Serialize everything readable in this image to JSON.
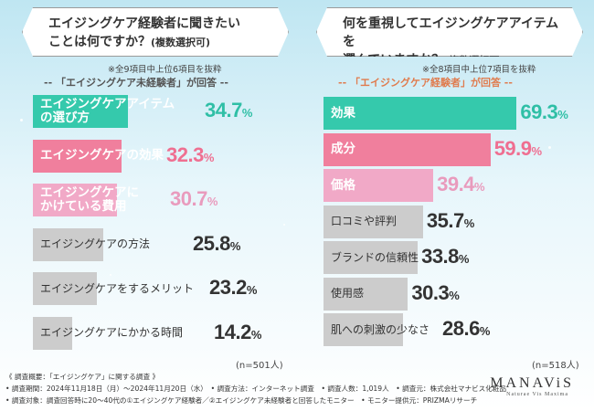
{
  "left": {
    "question_main": "エイジングケア経験者に聞きたい",
    "question_line2": "ことは何ですか？",
    "question_sub": "(複数選択可)",
    "note": "※全9項目中上位6項目を抜粋",
    "respondent": "-- 「エイジングケア未経験者」が回答 --",
    "n_label": "(n=501人)"
  },
  "right": {
    "question_main": "何を重視してエイジングケアアイテムを",
    "question_line2": "選んでいますか？",
    "question_sub": "(複数選択可)",
    "note": "※全8項目中上位7項目を抜粋",
    "respondent": "-- 「エイジングケア経験者」が回答 --",
    "n_label": "(n=518人)"
  },
  "chart_data": [
    {
      "type": "bar",
      "orientation": "horizontal",
      "unit": "%",
      "categories": [
        "エイジングケアアイテムの選び方",
        "エイジングケアの効果",
        "エイジングケアにかけている費用",
        "エイジングケアの方法",
        "エイジングケアをするメリット",
        "エイジングケアにかかる時間"
      ],
      "category_lines": [
        [
          "エイジングケアアイテム",
          "の選び方"
        ],
        [
          "エイジングケアの効果"
        ],
        [
          "エイジングケアに",
          "かけている費用"
        ],
        [
          "エイジングケアの方法"
        ],
        [
          "エイジングケアをするメリット"
        ],
        [
          "エイジングケアにかかる時間"
        ]
      ],
      "values": [
        34.7,
        32.3,
        30.7,
        25.8,
        23.2,
        14.2
      ],
      "colors": [
        "#35c9ac",
        "#f07f9d",
        "#f1a9c7",
        "#cccccc",
        "#cccccc",
        "#cccccc"
      ],
      "value_colors": [
        "#2fbfa6",
        "#ef6f91",
        "#e99bbd",
        "#333333",
        "#333333",
        "#333333"
      ]
    },
    {
      "type": "bar",
      "orientation": "horizontal",
      "unit": "%",
      "categories": [
        "効果",
        "成分",
        "価格",
        "口コミや評判",
        "ブランドの信頼性",
        "使用感",
        "肌への刺激の少なさ"
      ],
      "category_lines": [
        [
          "効果"
        ],
        [
          "成分"
        ],
        [
          "価格"
        ],
        [
          "口コミや評判"
        ],
        [
          "ブランドの信頼性"
        ],
        [
          "使用感"
        ],
        [
          "肌への刺激の少なさ"
        ]
      ],
      "values": [
        69.3,
        59.9,
        39.4,
        35.7,
        33.8,
        30.3,
        28.6
      ],
      "colors": [
        "#35c9ac",
        "#f07f9d",
        "#f1a9c7",
        "#cccccc",
        "#cccccc",
        "#cccccc",
        "#cccccc"
      ],
      "value_colors": [
        "#2fbfa6",
        "#ef6f91",
        "#e99bbd",
        "#333333",
        "#333333",
        "#333333",
        "#333333"
      ]
    }
  ],
  "footer": {
    "line1": "《 調査概要：「エイジングケア」に関する調査 》",
    "line2": "• 調査期間：2024年11月18日（月）～2024年11月20日（水）　• 調査方法：インターネット調査　• 調査人数：1,019人　• 調査元：株式会社マナビス化粧品",
    "line3": "• 調査対象：調査回答時に20～40代の①エイジングケア経験者／②エイジングケア未経験者と回答したモニター　• モニター提供元：PRIZMAリサーチ"
  },
  "logo": {
    "name": "MANAViS",
    "tagline": "Naturae Vis Maxima"
  }
}
